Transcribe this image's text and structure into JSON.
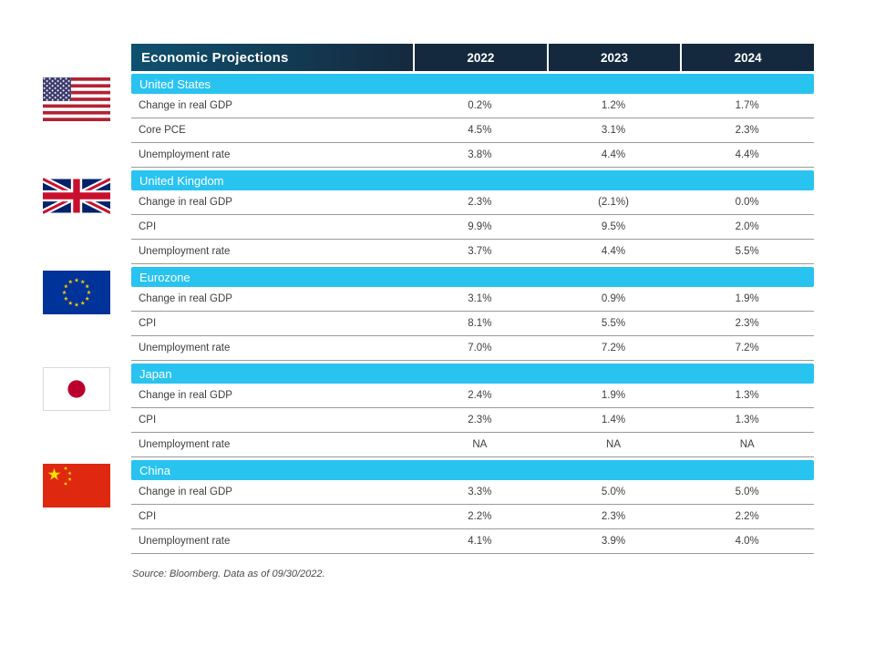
{
  "chart_data": {
    "type": "table",
    "title": "Economic Projections",
    "columns": [
      "2022",
      "2023",
      "2024"
    ],
    "sections": [
      {
        "country": "United States",
        "flag": "us",
        "rows": [
          {
            "label": "Change in real GDP",
            "values": [
              "0.2%",
              "1.2%",
              "1.7%"
            ]
          },
          {
            "label": "Core PCE",
            "values": [
              "4.5%",
              "3.1%",
              "2.3%"
            ]
          },
          {
            "label": "Unemployment rate",
            "values": [
              "3.8%",
              "4.4%",
              "4.4%"
            ]
          }
        ]
      },
      {
        "country": "United Kingdom",
        "flag": "uk",
        "rows": [
          {
            "label": "Change in real GDP",
            "values": [
              "2.3%",
              "(2.1%)",
              "0.0%"
            ]
          },
          {
            "label": "CPI",
            "values": [
              "9.9%",
              "9.5%",
              "2.0%"
            ]
          },
          {
            "label": "Unemployment rate",
            "values": [
              "3.7%",
              "4.4%",
              "5.5%"
            ]
          }
        ]
      },
      {
        "country": "Eurozone",
        "flag": "eu",
        "rows": [
          {
            "label": "Change in real GDP",
            "values": [
              "3.1%",
              "0.9%",
              "1.9%"
            ]
          },
          {
            "label": "CPI",
            "values": [
              "8.1%",
              "5.5%",
              "2.3%"
            ]
          },
          {
            "label": "Unemployment rate",
            "values": [
              "7.0%",
              "7.2%",
              "7.2%"
            ]
          }
        ]
      },
      {
        "country": "Japan",
        "flag": "jp",
        "rows": [
          {
            "label": "Change in real GDP",
            "values": [
              "2.4%",
              "1.9%",
              "1.3%"
            ]
          },
          {
            "label": "CPI",
            "values": [
              "2.3%",
              "1.4%",
              "1.3%"
            ]
          },
          {
            "label": "Unemployment rate",
            "values": [
              "NA",
              "NA",
              "NA"
            ]
          }
        ]
      },
      {
        "country": "China",
        "flag": "cn",
        "rows": [
          {
            "label": "Change in real GDP",
            "values": [
              "3.3%",
              "5.0%",
              "5.0%"
            ]
          },
          {
            "label": "CPI",
            "values": [
              "2.2%",
              "2.3%",
              "2.2%"
            ]
          },
          {
            "label": "Unemployment rate",
            "values": [
              "4.1%",
              "3.9%",
              "4.0%"
            ]
          }
        ]
      }
    ],
    "source": "Source: Bloomberg. Data as of 09/30/2022.",
    "layout": {
      "legend": "none",
      "grid": "row-separators"
    }
  },
  "colors": {
    "header_navy": "#15293e",
    "header_teal": "#0f5170",
    "band_cyan": "#29c3f0",
    "row_text": "#3e3e3e",
    "separator": "#9a9a9a",
    "background": "#ffffff"
  }
}
